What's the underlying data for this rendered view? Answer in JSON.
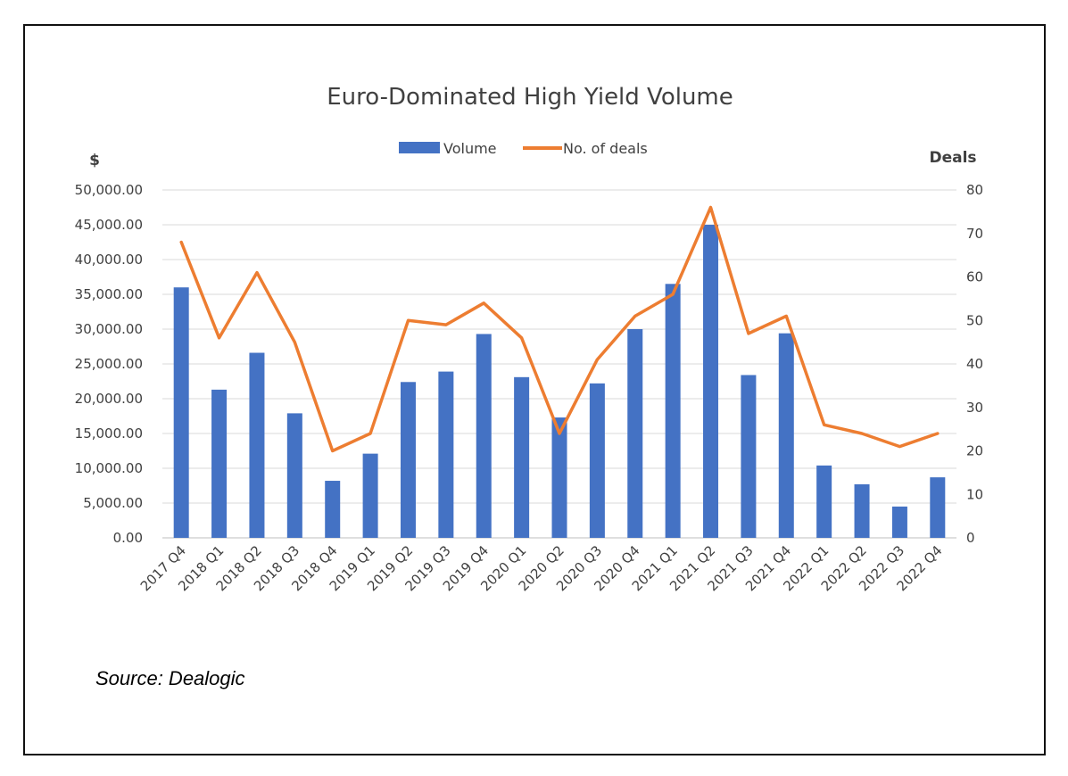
{
  "chart_data": {
    "type": "bar",
    "title": "Euro-Dominated High Yield Volume",
    "y_left_label": "$",
    "y_right_label": "Deals",
    "categories": [
      "2017 Q4",
      "2018 Q1",
      "2018 Q2",
      "2018 Q3",
      "2018 Q4",
      "2019 Q1",
      "2019 Q2",
      "2019 Q3",
      "2019 Q4",
      "2020 Q1",
      "2020 Q2",
      "2020 Q3",
      "2020 Q4",
      "2021 Q1",
      "2021 Q2",
      "2021 Q3",
      "2021 Q4",
      "2022 Q1",
      "2022 Q2",
      "2022 Q3",
      "2022 Q4"
    ],
    "series": [
      {
        "name": "Volume",
        "type": "bar",
        "axis": "left",
        "color": "#4472C4",
        "values": [
          36000,
          21300,
          26600,
          17900,
          8200,
          12100,
          22400,
          23900,
          29300,
          23100,
          17300,
          22200,
          30000,
          36500,
          45000,
          23400,
          29400,
          10400,
          7700,
          4500,
          8700
        ]
      },
      {
        "name": "No. of deals",
        "type": "line",
        "axis": "right",
        "color": "#ED7D31",
        "values": [
          68,
          46,
          61,
          45,
          20,
          24,
          50,
          49,
          54,
          46,
          24,
          41,
          51,
          56,
          76,
          47,
          51,
          26,
          24,
          21,
          24
        ]
      }
    ],
    "ylim_left": [
      0,
      50000
    ],
    "yticks_left": [
      "0.00",
      "5,000.00",
      "10,000.00",
      "15,000.00",
      "20,000.00",
      "25,000.00",
      "30,000.00",
      "35,000.00",
      "40,000.00",
      "45,000.00",
      "50,000.00"
    ],
    "ylim_right": [
      0,
      80
    ],
    "yticks_right": [
      "0",
      "10",
      "20",
      "30",
      "40",
      "50",
      "60",
      "70",
      "80"
    ],
    "grid": true,
    "legend_position": "top-center"
  },
  "source": "Source: Dealogic"
}
